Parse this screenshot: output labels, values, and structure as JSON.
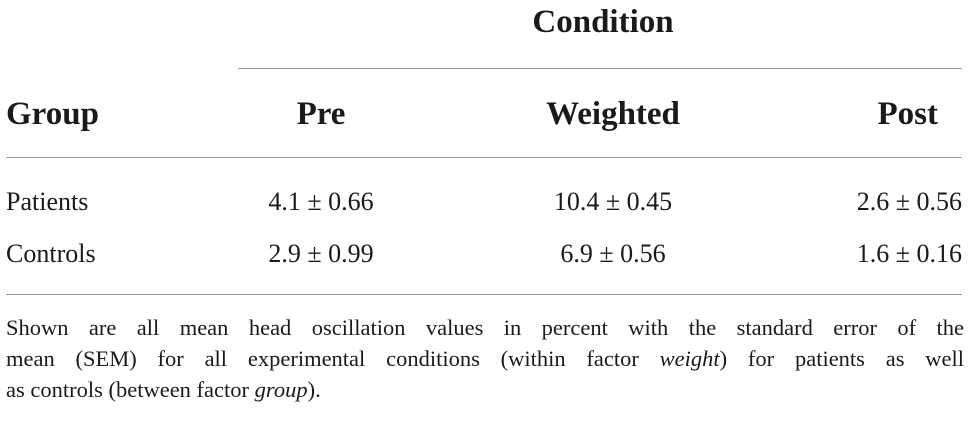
{
  "table": {
    "spanner_header": "Condition",
    "row_header": "Group",
    "columns": [
      "Pre",
      "Weighted",
      "Post"
    ],
    "rows": [
      {
        "group": "Patients",
        "pre": "4.1 ± 0.66",
        "weighted": "10.4 ± 0.45",
        "post": "2.6 ± 0.56"
      },
      {
        "group": "Controls",
        "pre": "2.9 ± 0.99",
        "weighted": "6.9 ± 0.56",
        "post": "1.6 ± 0.16"
      }
    ]
  },
  "footnote": {
    "line1": "Shown are all mean head oscillation values in percent with the standard error of the",
    "line2_a": "mean (SEM) for all experimental conditions (within factor ",
    "line2_em": "weight",
    "line2_b": ") for patients as well",
    "line3_a": "as controls (between factor ",
    "line3_em": "group",
    "line3_b": ")."
  }
}
